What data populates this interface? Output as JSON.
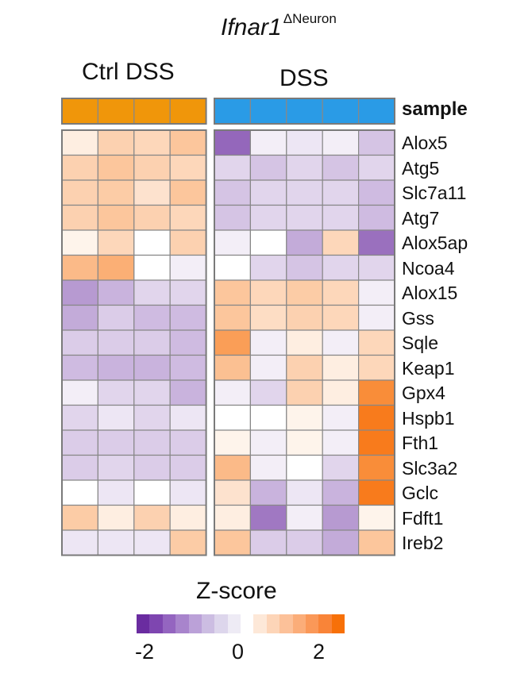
{
  "title": {
    "main": "Ifnar1",
    "superscript": "ΔNeuron"
  },
  "groups": {
    "ctrl": "Ctrl DSS",
    "dss": "DSS"
  },
  "sample_label": "sample",
  "colors": {
    "ctrl_annotation": "#f0960a",
    "dss_annotation": "#2a9be6",
    "low": "#6a2ca0",
    "mid": "#ffffff",
    "high": "#f77008",
    "cell_border": "#888888"
  },
  "legend": {
    "title": "Z-score",
    "ticks": [
      "-2",
      "0",
      "2"
    ],
    "colors": [
      "#6a2ca0",
      "#7e46b0",
      "#9465c0",
      "#a884cc",
      "#bba1d8",
      "#ccbde2",
      "#ddd6ec",
      "#eeebf5",
      "#ffffff",
      "#fde8d8",
      "#fdd5b8",
      "#fcc199",
      "#fbad79",
      "#fa9858",
      "#f98438",
      "#f77008"
    ]
  },
  "chart_data": {
    "type": "heatmap",
    "x_groups": [
      {
        "name": "Ctrl DSS",
        "columns": 4
      },
      {
        "name": "DSS",
        "columns": 5
      }
    ],
    "y": [
      "Alox5",
      "Atg5",
      "Slc7a11",
      "Atg7",
      "Alox5ap",
      "Ncoa4",
      "Alox15",
      "Gss",
      "Sqle",
      "Keap1",
      "Gpx4",
      "Hspb1",
      "Fth1",
      "Slc3a2",
      "Gclc",
      "Fdft1",
      "Ireb2"
    ],
    "zlim": [
      -2.5,
      2.5
    ],
    "values": [
      [
        0.3,
        0.8,
        0.7,
        1.0,
        -1.8,
        -0.2,
        -0.3,
        -0.2,
        -0.7
      ],
      [
        0.8,
        1.0,
        0.8,
        0.7,
        -0.5,
        -0.7,
        -0.5,
        -0.7,
        -0.5
      ],
      [
        0.8,
        0.9,
        0.5,
        1.0,
        -0.7,
        -0.5,
        -0.5,
        -0.5,
        -0.8
      ],
      [
        0.8,
        1.0,
        0.8,
        0.7,
        -0.7,
        -0.5,
        -0.5,
        -0.5,
        -0.8
      ],
      [
        0.2,
        0.7,
        0.0,
        0.8,
        -0.2,
        0.0,
        -1.0,
        0.7,
        -1.7
      ],
      [
        1.2,
        1.4,
        0.0,
        -0.2,
        0.0,
        -0.5,
        -0.7,
        -0.5,
        -0.5
      ],
      [
        -1.2,
        -0.9,
        -0.5,
        -0.5,
        1.0,
        0.7,
        0.9,
        0.7,
        -0.2
      ],
      [
        -1.0,
        -0.6,
        -0.8,
        -0.8,
        1.0,
        0.6,
        0.8,
        0.7,
        -0.2
      ],
      [
        -0.6,
        -0.6,
        -0.6,
        -0.8,
        1.7,
        -0.2,
        0.3,
        -0.2,
        0.7
      ],
      [
        -0.8,
        -0.9,
        -0.9,
        -0.8,
        1.1,
        -0.2,
        0.8,
        0.3,
        0.7
      ],
      [
        -0.2,
        -0.5,
        -0.5,
        -0.9,
        -0.2,
        -0.5,
        0.8,
        0.3,
        2.0
      ],
      [
        -0.5,
        -0.3,
        -0.5,
        -0.3,
        0.0,
        0.0,
        0.2,
        -0.2,
        2.3
      ],
      [
        -0.6,
        -0.6,
        -0.6,
        -0.6,
        0.2,
        -0.2,
        0.2,
        -0.2,
        2.3
      ],
      [
        -0.6,
        -0.5,
        -0.6,
        -0.6,
        1.2,
        -0.2,
        0.0,
        -0.5,
        2.0
      ],
      [
        0.0,
        -0.3,
        0.0,
        -0.3,
        0.5,
        -0.9,
        -0.3,
        -0.9,
        2.3
      ],
      [
        0.9,
        0.3,
        0.8,
        0.3,
        0.3,
        -1.6,
        -0.2,
        -1.2,
        0.2
      ],
      [
        -0.3,
        -0.3,
        -0.3,
        0.9,
        1.0,
        -0.6,
        -0.6,
        -1.0,
        1.0
      ]
    ]
  }
}
